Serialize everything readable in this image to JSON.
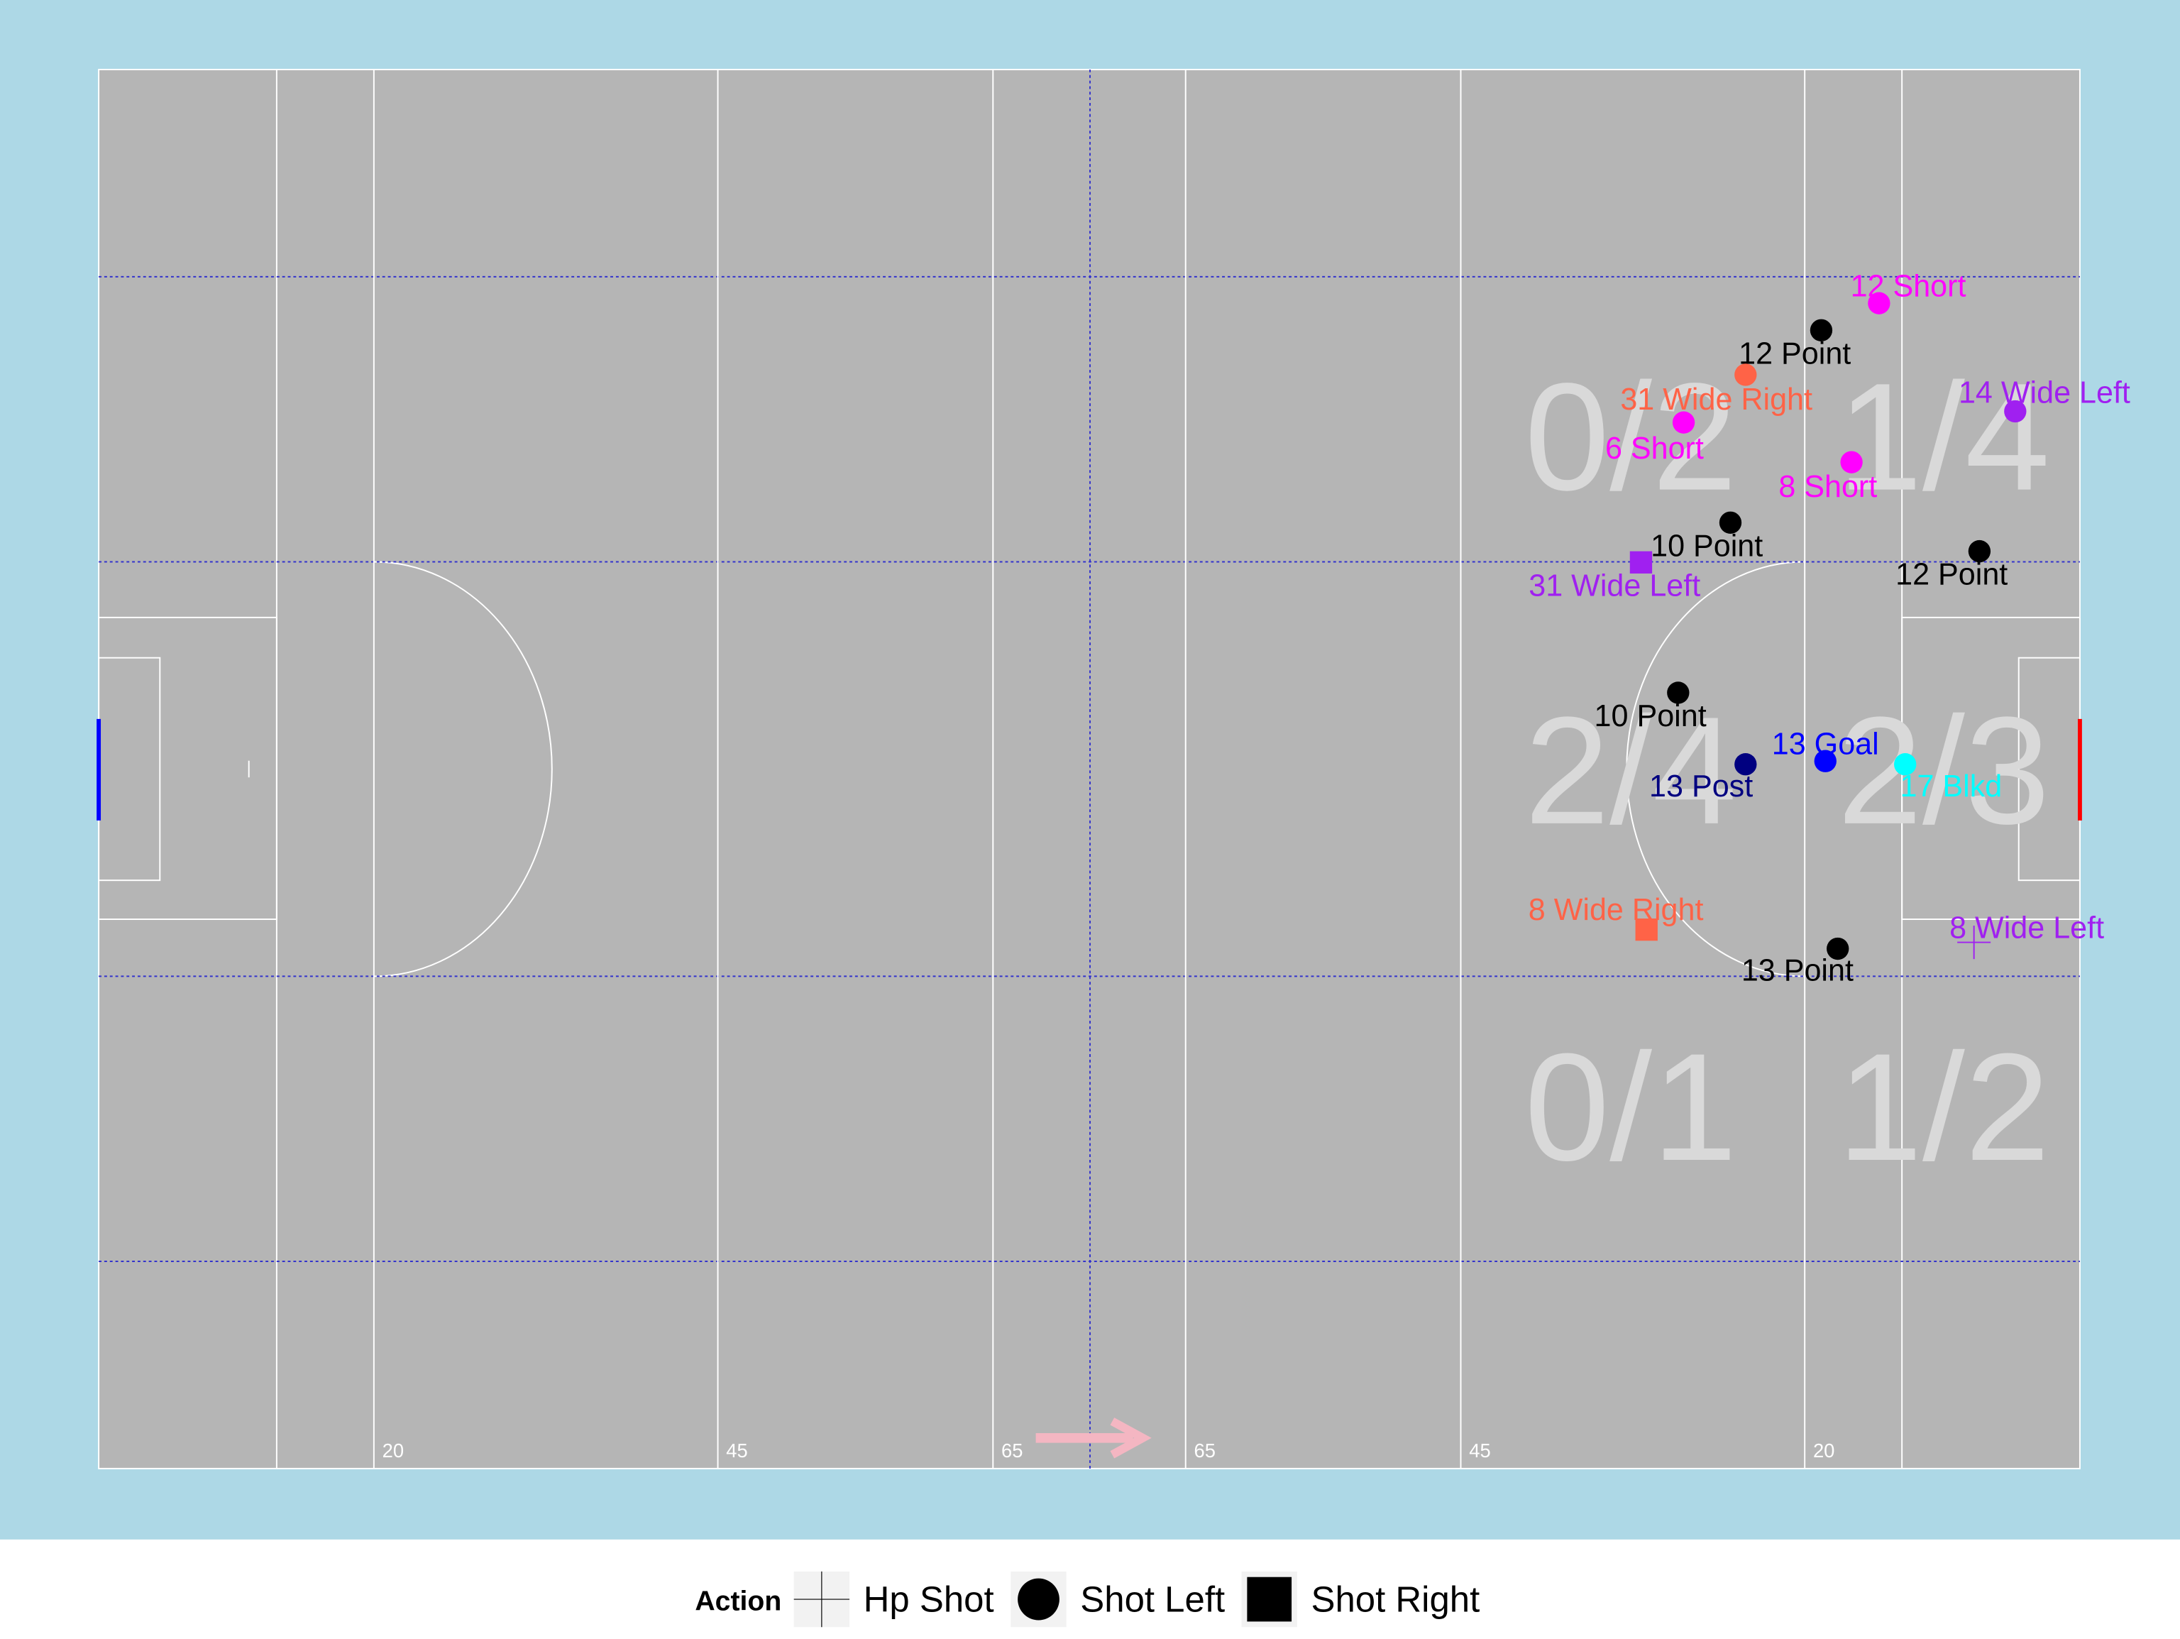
{
  "chart_data": {
    "type": "scatter",
    "xlim": [
      0,
      144
    ],
    "ylim": [
      0,
      88
    ],
    "xticks": [
      20,
      45,
      65,
      {
        "value": 79,
        "label": "65"
      },
      {
        "value": 99,
        "label": "45"
      },
      {
        "value": 124,
        "label": "20"
      }
    ],
    "zones": [
      "0/2",
      "1/4",
      "2/4",
      "2/3",
      "0/1",
      "1/2"
    ],
    "legend_title": "Action",
    "series": [
      {
        "name": "Hp Shot",
        "marker": "plus",
        "x": [
          136.3
        ],
        "y": [
          54.9
        ],
        "labels": [
          "8 Wide Left"
        ],
        "colors": [
          "#a020f0"
        ]
      },
      {
        "name": "Shot Left",
        "marker": "circle",
        "x": [
          129.4,
          125.2,
          119.7,
          139.3,
          115.2,
          127.4,
          118.6,
          136.7,
          114.8,
          125.5,
          119.7,
          131.3,
          126.4
        ],
        "y": [
          14.7,
          16.4,
          19.2,
          21.5,
          22.2,
          24.7,
          28.5,
          30.3,
          39.2,
          43.5,
          43.7,
          43.7,
          55.3
        ],
        "labels": [
          "12 Short",
          "12 Point",
          "31 Wide Right",
          "14 Wide Left",
          "6 Short",
          "8 Short",
          "10 Point",
          "12 Point",
          "10 Point",
          "13 Goal",
          "13 Post",
          "17 Blkd",
          "13 Point"
        ],
        "colors": [
          "#ff00ff",
          "#000000",
          "#ff6347",
          "#a020f0",
          "#ff00ff",
          "#ff00ff",
          "#000000",
          "#000000",
          "#000000",
          "#0000ff",
          "#000080",
          "#00ffff",
          "#000000"
        ]
      },
      {
        "name": "Shot Right",
        "marker": "square",
        "x": [
          112.1,
          112.5
        ],
        "y": [
          31.0,
          54.1
        ],
        "labels": [
          "31 Wide Left",
          "8 Wide Right"
        ],
        "colors": [
          "#a020f0",
          "#ff6347"
        ]
      }
    ]
  }
}
